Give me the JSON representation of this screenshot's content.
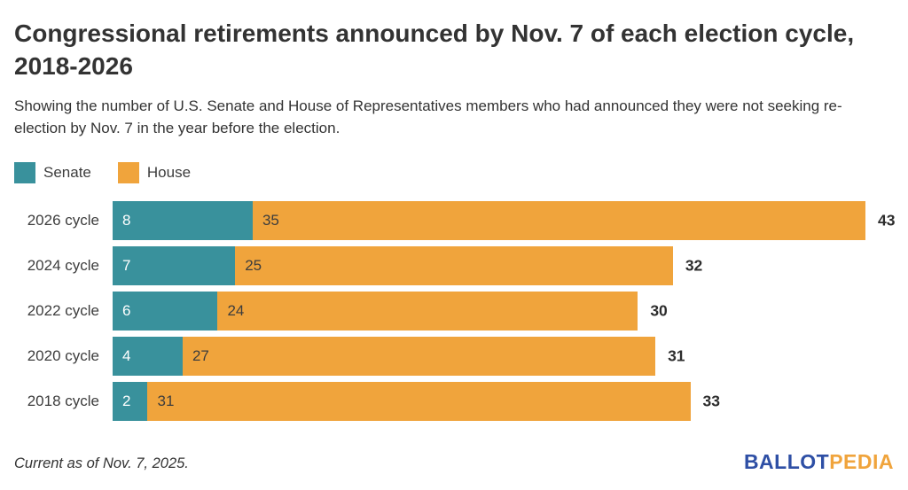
{
  "title": "Congressional retirements announced by Nov. 7 of each election cycle, 2018-2026",
  "subtitle": "Showing the number of U.S. Senate and House of Representatives members who had announced they were not seeking re-election by Nov. 7 in the year before the election.",
  "legend": [
    {
      "label": "Senate",
      "color": "#39919c"
    },
    {
      "label": "House",
      "color": "#f0a43c"
    }
  ],
  "chart_data": {
    "type": "bar",
    "orientation": "horizontal",
    "stacked": true,
    "categories": [
      "2026 cycle",
      "2024 cycle",
      "2022 cycle",
      "2020 cycle",
      "2018 cycle"
    ],
    "series": [
      {
        "name": "Senate",
        "color": "#39919c",
        "text_color": "#ffffff",
        "values": [
          8,
          7,
          6,
          4,
          2
        ]
      },
      {
        "name": "House",
        "color": "#f0a43c",
        "text_color": "#3d3d3d",
        "values": [
          35,
          25,
          24,
          27,
          31
        ]
      }
    ],
    "totals": [
      43,
      32,
      30,
      31,
      33
    ],
    "xmax": 43,
    "value_labels": "inside-start",
    "total_labels": "outside-end",
    "grid": false,
    "legend_position": "top-left"
  },
  "footer": {
    "note": "Current as of Nov. 7, 2025.",
    "brand_part1": "BALLOT",
    "brand_part2": "PEDIA",
    "brand_color1": "#2e4fa5",
    "brand_color2": "#f0a43c"
  }
}
